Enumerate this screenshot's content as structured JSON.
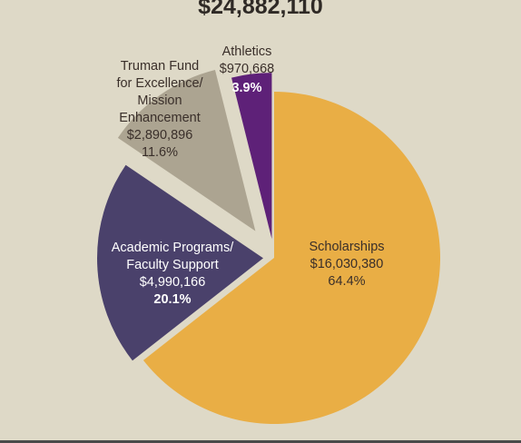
{
  "chart_data": {
    "type": "pie",
    "title": "$24,882,110",
    "categories": [
      "Scholarships",
      "Academic Programs/\nFaculty Support",
      "Truman Fund\nfor Excellence/\nMission\nEnhancement",
      "Athletics"
    ],
    "values": [
      16030380,
      4990166,
      2890896,
      970668
    ],
    "value_labels": [
      "$16,030,380",
      "$4,990,166",
      "$2,890,896",
      "$970,668"
    ],
    "percentages": [
      64.4,
      20.1,
      11.6,
      3.9
    ],
    "percentage_labels": [
      "64.4%",
      "20.1%",
      "11.6%",
      "3.9%"
    ],
    "colors": [
      "#e9ae45",
      "#4a416b",
      "#aca491",
      "#5e2178"
    ]
  }
}
